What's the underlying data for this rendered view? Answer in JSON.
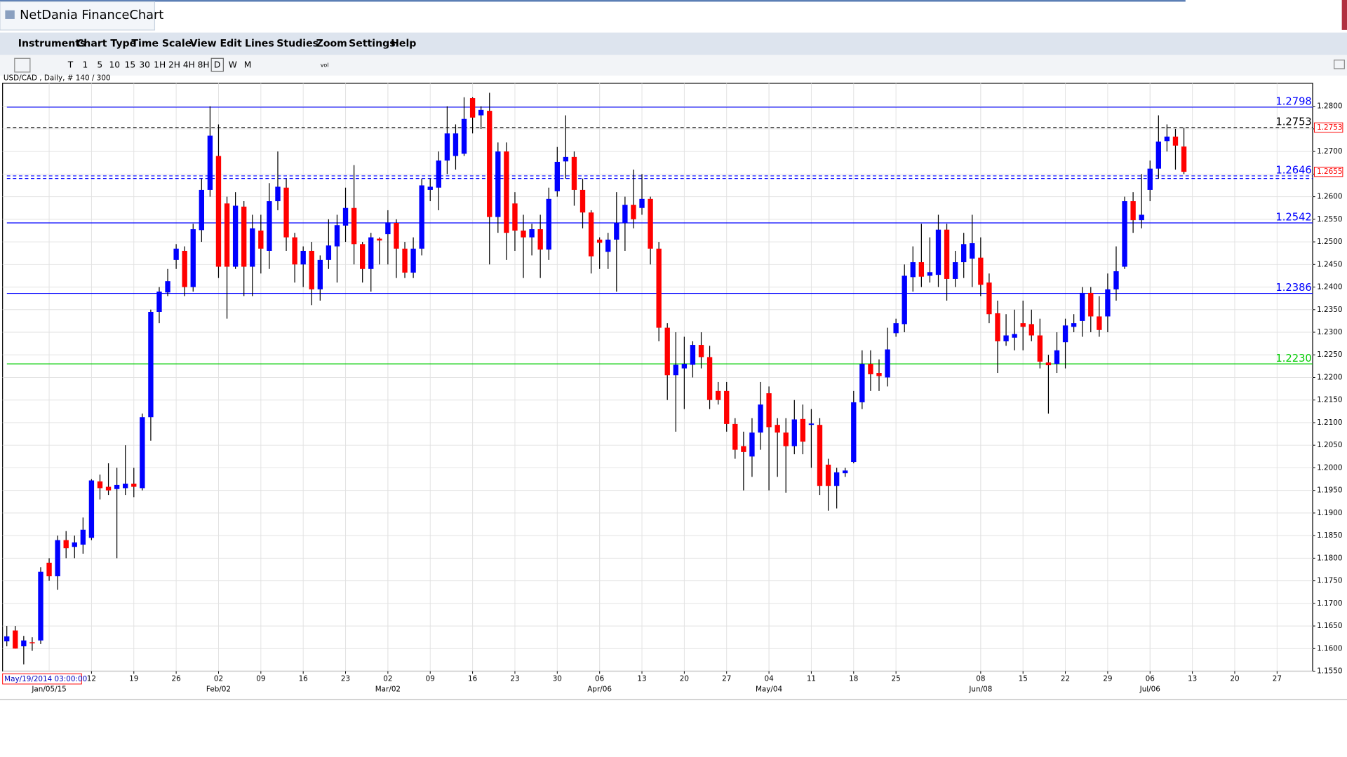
{
  "app": {
    "title": "NetDania FinanceChart",
    "menu": [
      "Instruments",
      "Chart Type",
      "Time Scale",
      "View",
      "Edit",
      "Lines",
      "Studies",
      "Zoom",
      "Settings",
      "Help"
    ],
    "toolbar": [
      "T",
      "1",
      "5",
      "10",
      "15",
      "30",
      "1H",
      "2H",
      "4H",
      "8H",
      "D",
      "W",
      "M",
      "vol"
    ]
  },
  "chart_data": {
    "type": "candlestick",
    "info": "USD/CAD , Daily, # 140 / 300",
    "cursor_label": "May/19/2014 03:00:00",
    "up_color": "#0000ff",
    "down_color": "#ff0000",
    "grid": true,
    "open": [
      1.1616,
      1.164,
      1.1605,
      1.1614,
      1.1618,
      1.179,
      1.176,
      1.184,
      1.1825,
      1.183,
      1.1845,
      1.197,
      1.1958,
      1.1953,
      1.1955,
      1.1965,
      1.1955,
      1.2112,
      1.2345,
      1.2388,
      1.246,
      1.248,
      1.24,
      1.2526,
      1.2615,
      1.269,
      1.2585,
      1.2445,
      1.2578,
      1.2445,
      1.2525,
      1.248,
      1.259,
      1.262,
      1.251,
      1.245,
      1.248,
      1.2395,
      1.246,
      1.249,
      1.2536,
      1.2575,
      1.2495,
      1.244,
      1.2507,
      1.2517,
      1.2542,
      1.2485,
      1.2432,
      1.2485,
      1.2615,
      1.262,
      1.268,
      1.269,
      1.2695,
      1.2818,
      1.278,
      1.279,
      1.2555,
      1.27,
      1.2585,
      1.2525,
      1.251,
      1.2528,
      1.2483,
      1.2612,
      1.2678,
      1.2688,
      1.2615,
      1.2565,
      1.2505,
      1.2478,
      1.2505,
      1.2542,
      1.2582,
      1.2575,
      1.2595,
      1.2485,
      1.231,
      1.2205,
      1.222,
      1.2228,
      1.2272,
      1.2245,
      1.217,
      1.217,
      1.2097,
      1.2048,
      1.2025,
      1.2078,
      1.2165,
      1.2095,
      1.2078,
      1.2048,
      1.2108,
      1.2095,
      1.2095,
      1.2007,
      1.196,
      1.1988,
      1.2013,
      1.2145,
      1.223,
      1.221,
      1.22,
      1.2298,
      1.2318,
      1.2422,
      1.2455,
      1.2425,
      1.2427,
      1.2527,
      1.2418,
      1.2455,
      1.2463,
      1.2465,
      1.241,
      1.2342,
      1.228,
      1.2288,
      1.232,
      1.2318,
      1.2293,
      1.2233,
      1.223,
      1.2278,
      1.2312,
      1.2325,
      1.2387,
      1.2335,
      1.2335,
      1.2395,
      1.2445,
      1.259,
      1.2548,
      1.2615,
      1.2662,
      1.2723,
      1.2733,
      1.2711
    ],
    "high": [
      1.165,
      1.165,
      1.1628,
      1.1625,
      1.178,
      1.18,
      1.185,
      1.186,
      1.185,
      1.189,
      1.1975,
      1.1985,
      1.201,
      1.2,
      1.205,
      1.2,
      1.212,
      1.235,
      1.24,
      1.244,
      1.2495,
      1.249,
      1.254,
      1.264,
      1.28,
      1.276,
      1.26,
      1.261,
      1.259,
      1.256,
      1.256,
      1.263,
      1.27,
      1.264,
      1.252,
      1.249,
      1.25,
      1.247,
      1.255,
      1.256,
      1.262,
      1.267,
      1.25,
      1.252,
      1.251,
      1.257,
      1.255,
      1.25,
      1.251,
      1.264,
      1.264,
      1.27,
      1.28,
      1.276,
      1.282,
      1.282,
      1.28,
      1.283,
      1.272,
      1.272,
      1.261,
      1.256,
      1.254,
      1.256,
      1.262,
      1.271,
      1.278,
      1.27,
      1.264,
      1.257,
      1.251,
      1.252,
      1.261,
      1.26,
      1.266,
      1.265,
      1.26,
      1.25,
      1.232,
      1.23,
      1.229,
      1.228,
      1.23,
      1.227,
      1.219,
      1.219,
      1.211,
      1.208,
      1.211,
      1.219,
      1.218,
      1.211,
      1.211,
      1.215,
      1.214,
      1.213,
      1.211,
      1.202,
      1.2,
      1.2,
      1.217,
      1.226,
      1.226,
      1.224,
      1.231,
      1.233,
      1.245,
      1.249,
      1.254,
      1.251,
      1.256,
      1.254,
      1.248,
      1.252,
      1.256,
      1.251,
      1.243,
      1.237,
      1.234,
      1.235,
      1.237,
      1.235,
      1.233,
      1.225,
      1.23,
      1.233,
      1.234,
      1.24,
      1.24,
      1.238,
      1.243,
      1.249,
      1.26,
      1.261,
      1.265,
      1.268,
      1.278,
      1.276,
      1.275,
      1.2753
    ],
    "low": [
      1.1605,
      1.16,
      1.1565,
      1.1595,
      1.161,
      1.175,
      1.173,
      1.18,
      1.18,
      1.181,
      1.184,
      1.193,
      1.194,
      1.18,
      1.194,
      1.1935,
      1.195,
      1.206,
      1.232,
      1.238,
      1.244,
      1.238,
      1.239,
      1.25,
      1.26,
      1.242,
      1.233,
      1.244,
      1.238,
      1.238,
      1.243,
      1.244,
      1.257,
      1.248,
      1.241,
      1.24,
      1.236,
      1.237,
      1.244,
      1.241,
      1.25,
      1.245,
      1.241,
      1.239,
      1.245,
      1.245,
      1.242,
      1.242,
      1.242,
      1.247,
      1.259,
      1.257,
      1.265,
      1.266,
      1.269,
      1.274,
      1.275,
      1.245,
      1.252,
      1.246,
      1.248,
      1.242,
      1.247,
      1.242,
      1.246,
      1.26,
      1.264,
      1.258,
      1.253,
      1.243,
      1.244,
      1.244,
      1.239,
      1.248,
      1.253,
      1.256,
      1.245,
      1.228,
      1.215,
      1.208,
      1.213,
      1.22,
      1.222,
      1.213,
      1.214,
      1.208,
      1.202,
      1.195,
      1.198,
      1.204,
      1.195,
      1.198,
      1.1945,
      1.203,
      1.203,
      1.2,
      1.194,
      1.1905,
      1.191,
      1.198,
      1.201,
      1.213,
      1.217,
      1.217,
      1.218,
      1.229,
      1.23,
      1.239,
      1.24,
      1.241,
      1.24,
      1.237,
      1.24,
      1.242,
      1.24,
      1.238,
      1.232,
      1.221,
      1.227,
      1.226,
      1.226,
      1.228,
      1.222,
      1.212,
      1.221,
      1.222,
      1.23,
      1.229,
      1.23,
      1.229,
      1.23,
      1.237,
      1.244,
      1.252,
      1.253,
      1.259,
      1.264,
      1.27,
      1.266,
      1.265
    ],
    "close": [
      1.1627,
      1.16,
      1.1618,
      1.1612,
      1.177,
      1.176,
      1.184,
      1.1822,
      1.1835,
      1.1863,
      1.1972,
      1.1955,
      1.195,
      1.1962,
      1.1965,
      1.1958,
      1.2112,
      1.2345,
      1.239,
      1.2413,
      1.2485,
      1.24,
      1.2528,
      1.2615,
      1.2735,
      1.2445,
      1.2445,
      1.258,
      1.2445,
      1.253,
      1.2485,
      1.259,
      1.2622,
      1.251,
      1.245,
      1.248,
      1.2395,
      1.246,
      1.2492,
      1.2537,
      1.2575,
      1.2495,
      1.244,
      1.251,
      1.2503,
      1.2543,
      1.2485,
      1.2432,
      1.2485,
      1.2625,
      1.2622,
      1.268,
      1.274,
      1.274,
      1.2772,
      1.2775,
      1.2792,
      1.2555,
      1.27,
      1.252,
      1.2525,
      1.251,
      1.2528,
      1.2483,
      1.2595,
      1.2677,
      1.2688,
      1.2615,
      1.2565,
      1.2468,
      1.2498,
      1.2505,
      1.2542,
      1.2582,
      1.255,
      1.2595,
      1.2485,
      1.231,
      1.2205,
      1.2228,
      1.223,
      1.2272,
      1.2245,
      1.215,
      1.215,
      1.2097,
      1.204,
      1.2035,
      1.2078,
      1.214,
      1.209,
      1.2078,
      1.2048,
      1.2107,
      1.2058,
      1.2098,
      1.196,
      1.196,
      1.199,
      1.1994,
      1.2145,
      1.223,
      1.2207,
      1.2203,
      1.2262,
      1.232,
      1.2425,
      1.2455,
      1.2423,
      1.2433,
      1.2527,
      1.2418,
      1.2455,
      1.2495,
      1.2497,
      1.2405,
      1.234,
      1.228,
      1.2293,
      1.2296,
      1.2312,
      1.2293,
      1.2235,
      1.2227,
      1.226,
      1.2315,
      1.232,
      1.2387,
      1.2335,
      1.2305,
      1.2395,
      1.2435,
      1.259,
      1.2548,
      1.256,
      1.2662,
      1.2722,
      1.2733,
      1.2713,
      1.2655
    ],
    "xlim": [
      -0.5,
      154.2
    ],
    "ylim": [
      1.155,
      1.2851
    ],
    "xticks": [
      {
        "value": 10,
        "label": "12"
      },
      {
        "value": 15,
        "label": "19"
      },
      {
        "value": 20,
        "label": "26"
      },
      {
        "value": 25,
        "label": "02"
      },
      {
        "value": 30,
        "label": "09"
      },
      {
        "value": 35,
        "label": "16"
      },
      {
        "value": 40,
        "label": "23"
      },
      {
        "value": 45,
        "label": "02"
      },
      {
        "value": 50,
        "label": "09"
      },
      {
        "value": 55,
        "label": "16"
      },
      {
        "value": 60,
        "label": "23"
      },
      {
        "value": 65,
        "label": "30"
      },
      {
        "value": 70,
        "label": "06"
      },
      {
        "value": 75,
        "label": "13"
      },
      {
        "value": 80,
        "label": "20"
      },
      {
        "value": 85,
        "label": "27"
      },
      {
        "value": 90,
        "label": "04"
      },
      {
        "value": 95,
        "label": "11"
      },
      {
        "value": 100,
        "label": "18"
      },
      {
        "value": 105,
        "label": "25"
      },
      {
        "value": 115,
        "label": "08"
      },
      {
        "value": 120,
        "label": "15"
      },
      {
        "value": 125,
        "label": "22"
      },
      {
        "value": 130,
        "label": "29"
      },
      {
        "value": 135,
        "label": "06"
      },
      {
        "value": 140,
        "label": "13"
      },
      {
        "value": 145,
        "label": "20"
      },
      {
        "value": 150,
        "label": "27"
      }
    ],
    "xticks_major": [
      {
        "value": 5,
        "label": "Jan/05/15"
      },
      {
        "value": 25,
        "label": "Feb/02"
      },
      {
        "value": 45,
        "label": "Mar/02"
      },
      {
        "value": 70,
        "label": "Apr/06"
      },
      {
        "value": 90,
        "label": "May/04"
      },
      {
        "value": 115,
        "label": "Jun/08"
      },
      {
        "value": 135,
        "label": "Jul/06"
      }
    ],
    "yticks": [
      {
        "value": 1.28,
        "label": "1.2800"
      },
      {
        "value": 1.275,
        "label": "1.2750"
      },
      {
        "value": 1.27,
        "label": "1.2700"
      },
      {
        "value": 1.265,
        "label": "1.2650"
      },
      {
        "value": 1.26,
        "label": "1.2600"
      },
      {
        "value": 1.255,
        "label": "1.2550"
      },
      {
        "value": 1.25,
        "label": "1.2500"
      },
      {
        "value": 1.245,
        "label": "1.2450"
      },
      {
        "value": 1.24,
        "label": "1.2400"
      },
      {
        "value": 1.235,
        "label": "1.2350"
      },
      {
        "value": 1.23,
        "label": "1.2300"
      },
      {
        "value": 1.225,
        "label": "1.2250"
      },
      {
        "value": 1.22,
        "label": "1.2200"
      },
      {
        "value": 1.215,
        "label": "1.2150"
      },
      {
        "value": 1.21,
        "label": "1.2100"
      },
      {
        "value": 1.205,
        "label": "1.2050"
      },
      {
        "value": 1.2,
        "label": "1.2000"
      },
      {
        "value": 1.195,
        "label": "1.1950"
      },
      {
        "value": 1.19,
        "label": "1.1900"
      },
      {
        "value": 1.185,
        "label": "1.1850"
      },
      {
        "value": 1.18,
        "label": "1.1800"
      },
      {
        "value": 1.175,
        "label": "1.1750"
      },
      {
        "value": 1.17,
        "label": "1.1700"
      },
      {
        "value": 1.165,
        "label": "1.1650"
      },
      {
        "value": 1.16,
        "label": "1.1600"
      },
      {
        "value": 1.155,
        "label": "1.1550"
      }
    ],
    "lines": [
      {
        "value": 1.2798,
        "color": "#0000ff",
        "style": "solid"
      },
      {
        "value": 1.2753,
        "color": "#000000",
        "style": "dashed"
      },
      {
        "value": 1.2646,
        "color": "#0000ff",
        "style": "dashed"
      },
      {
        "value": 1.2542,
        "color": "#0000ff",
        "style": "solid"
      },
      {
        "value": 1.2386,
        "color": "#0000ff",
        "style": "solid"
      },
      {
        "value": 1.223,
        "label": "1.2230",
        "color": "#00cc00",
        "style": "solid"
      }
    ],
    "price_markers": [
      1.2753,
      1.2655
    ]
  }
}
